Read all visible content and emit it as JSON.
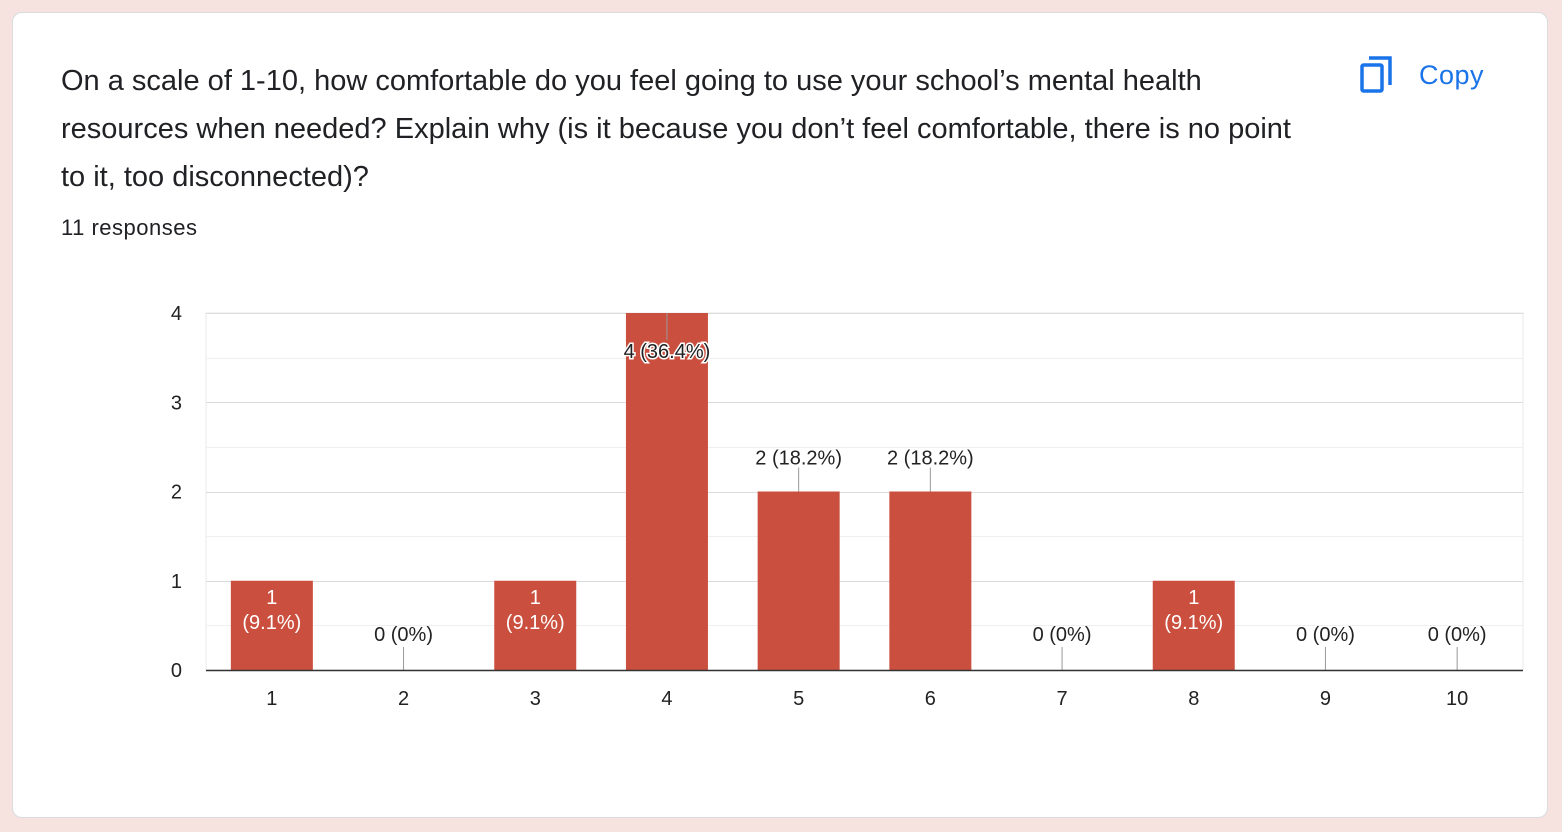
{
  "question": {
    "title": "On a scale of 1-10, how comfortable do you feel going to use your school’s mental health resources when needed? Explain why (is it because you don’t feel comfortable, there is no point to it, too disconnected)?",
    "responses": "11 responses"
  },
  "copy": {
    "label": "Copy",
    "icon": "copy-icon"
  },
  "colors": {
    "bar": "#cb4f3e",
    "accent": "#1a73e8"
  },
  "chart_data": {
    "type": "bar",
    "categories": [
      "1",
      "2",
      "3",
      "4",
      "5",
      "6",
      "7",
      "8",
      "9",
      "10"
    ],
    "values": [
      1,
      0,
      1,
      4,
      2,
      2,
      0,
      1,
      0,
      0
    ],
    "data_labels": [
      "1 (9.1%)",
      "0 (0%)",
      "1 (9.1%)",
      "4 (36.4%)",
      "2 (18.2%)",
      "2 (18.2%)",
      "0 (0%)",
      "1 (9.1%)",
      "0 (0%)",
      "0 (0%)"
    ],
    "y_ticks": [
      0,
      1,
      2,
      3,
      4
    ],
    "ylim": [
      0,
      4
    ],
    "grid": true,
    "xlabel": "",
    "ylabel": ""
  }
}
